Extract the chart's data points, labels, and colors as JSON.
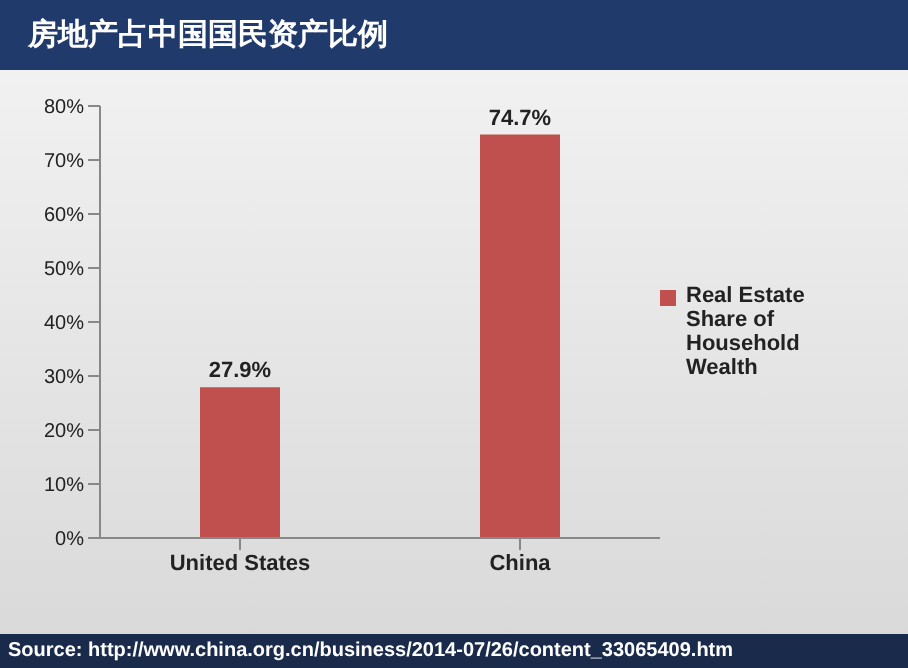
{
  "chart_data": {
    "type": "bar",
    "title": "房地产占中国国民资产比例",
    "categories": [
      "United States",
      "China"
    ],
    "series": [
      {
        "name": "Real Estate Share of Household Wealth",
        "color": "#c0504d",
        "values": [
          27.9,
          74.7
        ],
        "value_labels": [
          "27.9%",
          "74.7%"
        ]
      }
    ],
    "ylim": [
      0,
      80
    ],
    "yticks": [
      {
        "value": 0,
        "label": "0%"
      },
      {
        "value": 10,
        "label": "10%"
      },
      {
        "value": 20,
        "label": "20%"
      },
      {
        "value": 30,
        "label": "30%"
      },
      {
        "value": 40,
        "label": "40%"
      },
      {
        "value": 50,
        "label": "50%"
      },
      {
        "value": 60,
        "label": "60%"
      },
      {
        "value": 70,
        "label": "70%"
      },
      {
        "value": 80,
        "label": "80%"
      }
    ],
    "grid": false,
    "legend": "right",
    "annotations": [
      "Source: http://www.china.org.cn/business/2014-07/26/content_33065409.htm"
    ]
  }
}
